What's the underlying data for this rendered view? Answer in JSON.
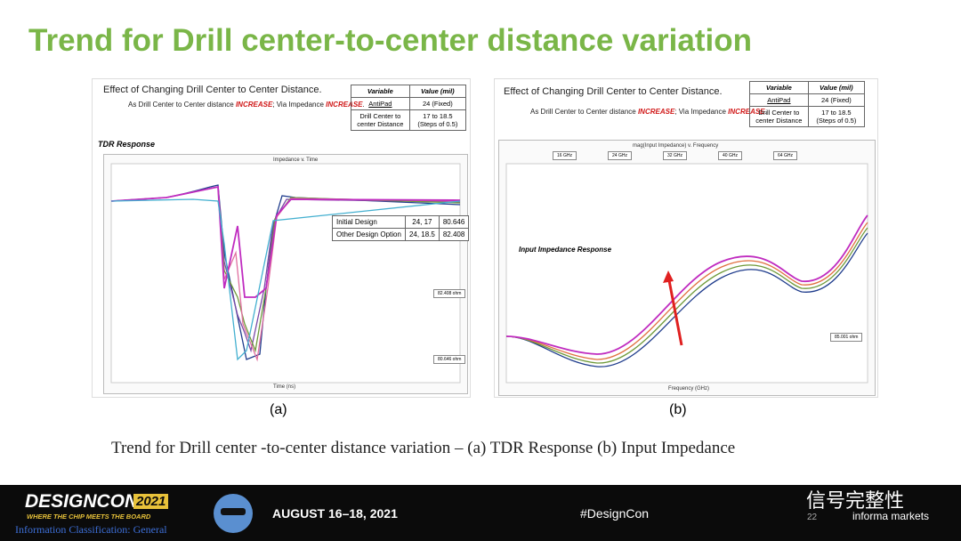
{
  "title": "Trend for Drill center-to-center distance variation",
  "left_panel": {
    "heading": "Effect of Changing Drill Center to Center Distance.",
    "subheading": [
      "As Drill Center to Center distance ",
      "INCREASE",
      "; Via Impedance ",
      "INCREASE",
      "."
    ],
    "table": {
      "header": [
        "Variable",
        "Value (mil)"
      ],
      "rows": [
        [
          "AntiPad",
          "24 (Fixed)"
        ],
        [
          "Drill Center to center Distance",
          "17 to 18.5 (Steps of 0.5)"
        ]
      ]
    },
    "section": "TDR Response",
    "plot_title": "Impedance v. Time",
    "x_label": "Time (ns)",
    "design_table": [
      [
        "Initial Design",
        "24, 17",
        "80.646"
      ],
      [
        "Other Design Option",
        "24, 18.5",
        "82.408"
      ]
    ],
    "markers": [
      "82.408 ohm",
      "80.646 ohm"
    ],
    "caption": "(a)"
  },
  "right_panel": {
    "heading": "Effect of Changing Drill Center to Center Distance.",
    "subheading": [
      "As Drill Center to Center distance ",
      "INCREASE",
      "; Via Impedance ",
      "INCREASE",
      "."
    ],
    "table": {
      "header": [
        "Variable",
        "Value (mil)"
      ],
      "rows": [
        [
          "AntiPad",
          "24 (Fixed)"
        ],
        [
          "Drill Center to center Distance",
          "17 to 18.5 (Steps of 0.5)"
        ]
      ]
    },
    "plot_title": "mag(Input Impedance) v. Frequency",
    "frequency_markers": [
      "16 GHz",
      "24 GHz",
      "32 GHz",
      "40 GHz",
      "64 GHz"
    ],
    "section": "Input Impedance Response",
    "x_label": "Frequency (GHz)",
    "markers": [
      "85.001 ohm"
    ],
    "caption": "(b)"
  },
  "figure_caption": "Trend for Drill center -to-center distance variation – (a) TDR Response (b) Input Impedance",
  "footer": {
    "logo": "DESIGNCON",
    "year": "2021",
    "tagline": "WHERE THE CHIP MEETS THE BOARD",
    "classification": "Information Classification: General",
    "dates": "AUGUST 16–18, 2021",
    "hashtag": "#DesignCon",
    "watermark": "信号完整性",
    "page": "22",
    "sponsor": "informa markets"
  }
}
